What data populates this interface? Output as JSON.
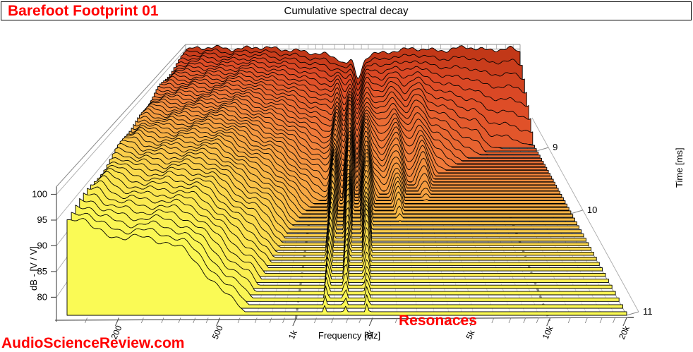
{
  "header": {
    "device_label": "Barefoot Footprint 01",
    "title": "Cumulative spectral decay"
  },
  "watermark": "AudioScienceReview.com",
  "annotation": "Resonaces",
  "colors": {
    "accent_red": "#ff0000",
    "frame_gray": "#999999",
    "grid_gray": "#c8c8c8",
    "dashed_marker_gray": "#8f8f8f",
    "slice_ramp": [
      [
        0.0,
        "#c23818"
      ],
      [
        0.07,
        "#dd4a26"
      ],
      [
        0.3,
        "#f07b3a"
      ],
      [
        0.55,
        "#f8ae44"
      ],
      [
        0.8,
        "#fbe04e"
      ],
      [
        1.0,
        "#fafa55"
      ]
    ],
    "slice_stroke": "#000000"
  },
  "chart_data": {
    "type": "area",
    "subtype": "3d-waterfall-cumulative-spectral-decay",
    "title": "Cumulative spectral decay",
    "xlabel": "Frequency [Hz]",
    "ylabel": "dB - [V / V]",
    "zlabel": "Time [ms]",
    "x_scale": "log",
    "xlim": [
      125,
      20000
    ],
    "ylim": [
      76.5,
      101.5
    ],
    "grid": true,
    "y_ticks": [
      80,
      85,
      90,
      95,
      100
    ],
    "time_ticks": [
      9,
      10,
      11
    ],
    "time_range_ms": [
      8.6,
      11.0
    ],
    "num_slices": 49,
    "floor_db": 76.5,
    "ribbon_min_db": 77.2,
    "x_ticks_labeled": [
      [
        200,
        "200"
      ],
      [
        500,
        "500"
      ],
      [
        1000,
        "1k"
      ],
      [
        2000,
        "2k"
      ],
      [
        5000,
        "5k"
      ],
      [
        10000,
        "10k"
      ],
      [
        20000,
        "20k"
      ]
    ],
    "x_ticks_minor": [
      150,
      200,
      250,
      300,
      350,
      400,
      450,
      500,
      600,
      700,
      800,
      900,
      1200,
      1400,
      1600,
      1800,
      2000,
      2500,
      3000,
      3500,
      4000,
      4500,
      5000,
      6000,
      7000,
      8000,
      9000,
      12000,
      14000,
      16000,
      18000,
      20000
    ],
    "x_major_dashed_markers": [
      1000,
      10000
    ],
    "frequencies_hz": [
      125,
      140,
      160,
      185,
      215,
      250,
      300,
      360,
      430,
      520,
      620,
      750,
      900,
      1050,
      1200,
      1300,
      1425,
      1550,
      1700,
      1900,
      2100,
      2400,
      2800,
      3300,
      3900,
      4600,
      5400,
      6400,
      7500,
      9000,
      10500,
      12500,
      15000,
      17500,
      20000
    ],
    "initial_db_at_8p6ms": [
      99.5,
      100.2,
      100.4,
      100.6,
      100.4,
      100.0,
      100.2,
      100.6,
      100.4,
      100.0,
      99.6,
      99.2,
      98.6,
      98.2,
      97.2,
      96.6,
      95.2,
      96.2,
      90.5,
      96.6,
      98.2,
      98.6,
      99.2,
      99.6,
      100.2,
      100.0,
      99.6,
      99.6,
      100.2,
      100.6,
      100.2,
      99.6,
      100.0,
      100.2,
      99.0
    ],
    "decay_rate_db_per_ms": [
      1.8,
      2.0,
      3.0,
      3.5,
      3.7,
      3.5,
      3.9,
      4.8,
      6.3,
      8.0,
      9.2,
      11.6,
      14.3,
      16.2,
      16.0,
      7.5,
      16.0,
      7.3,
      13.0,
      7.5,
      16.0,
      19.5,
      14.0,
      24.0,
      18.0,
      27.0,
      30.0,
      35.0,
      42.0,
      47.0,
      55.0,
      56.0,
      60.0,
      64.0,
      63.0
    ]
  }
}
